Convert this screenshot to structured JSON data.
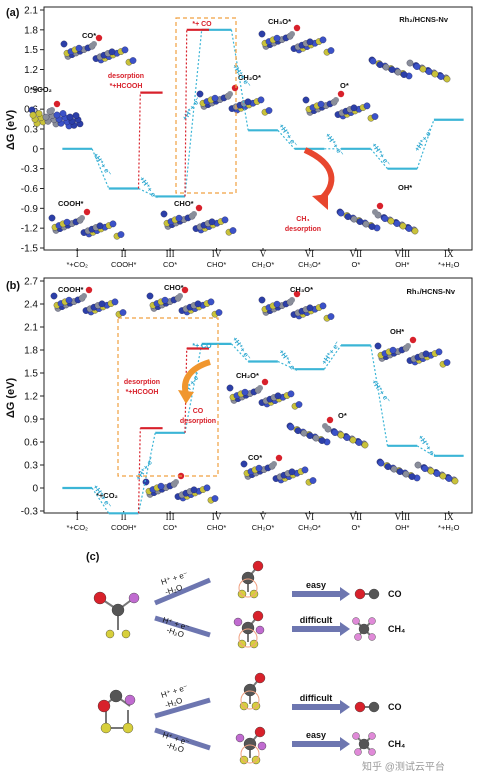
{
  "panels": {
    "a": {
      "label": "(a)",
      "title": "Rh₂/HCNS-Nv"
    },
    "b": {
      "label": "(b)",
      "title": "Rh₁/HCNS-Nv"
    },
    "c": {
      "label": "(c)"
    }
  },
  "chart_data": [
    {
      "type": "line",
      "title": "Rh₂/HCNS-Nv",
      "ylabel": "ΔG (eV)",
      "xlabel": "",
      "ylim": [
        -1.5,
        2.1
      ],
      "yticks": [
        -1.5,
        -1.2,
        -0.9,
        -0.6,
        -0.3,
        0,
        0.3,
        0.6,
        0.9,
        1.2,
        1.5,
        1.8,
        2.1
      ],
      "ytick_labels": [
        "-1.5",
        "-1.2",
        "-0.9",
        "-0.6",
        "-0.3",
        "0",
        "0.3",
        "0.6",
        "0.9",
        "1.2",
        "1.5",
        "1.8",
        "2.1"
      ],
      "roman": [
        "I",
        "II",
        "III",
        "IV",
        "V",
        "VI",
        "VII",
        "VIII",
        "IX"
      ],
      "categories": [
        "*+CO₂",
        "COOH*",
        "CO*",
        "CHO*",
        "CH₂O*",
        "CH₃O*",
        "O*",
        "OH*",
        "*+H₂O"
      ],
      "main_path": {
        "name": "main",
        "values": [
          0,
          -0.6,
          -0.72,
          1.8,
          0.28,
          0,
          0,
          -0.3,
          0.44
        ]
      },
      "branches": [
        {
          "from_index": 1,
          "to": "desorption",
          "value": 0.85,
          "label": "*+HCOOH"
        },
        {
          "from_index": 2,
          "to": "desorption",
          "value": 1.8,
          "label": "*+ CO"
        }
      ],
      "annotations": {
        "desorption_label": "desorption",
        "hcooh_label": "*+HCOOH",
        "co_label": "*+ CO",
        "ch4_label": "CH₄",
        "ch4_desorption": "desorption",
        "step": "+H⁺+ e⁻"
      },
      "species_labels": [
        "CO*",
        "*+CO₂",
        "COOH*",
        "CHO*",
        "CH₂O*",
        "CH₃O*",
        "O*",
        "OH*"
      ]
    },
    {
      "type": "line",
      "title": "Rh₁/HCNS-Nv",
      "ylabel": "ΔG (eV)",
      "xlabel": "",
      "ylim": [
        -0.3,
        2.7
      ],
      "yticks": [
        -0.3,
        0,
        0.3,
        0.6,
        0.9,
        1.2,
        1.5,
        1.8,
        2.1,
        2.4,
        2.7
      ],
      "ytick_labels": [
        "-0.3",
        "0",
        "0.3",
        "0.6",
        "0.9",
        "1.2",
        "1.5",
        "1.8",
        "2.1",
        "2.4",
        "2.7"
      ],
      "roman": [
        "I",
        "II",
        "III",
        "IV",
        "V",
        "VI",
        "VII",
        "VIII",
        "IX"
      ],
      "categories": [
        "*+CO₂",
        "COOH*",
        "CO*",
        "CHO*",
        "CH₂O*",
        "CH₃O*",
        "O*",
        "OH*",
        "*+H₂O"
      ],
      "main_path": {
        "name": "main",
        "values": [
          0,
          -0.33,
          0.72,
          1.88,
          1.65,
          1.55,
          1.86,
          0.55,
          0.42
        ]
      },
      "branches": [
        {
          "from_index": 1,
          "to": "desorption",
          "value": 0.78,
          "label": "*+HCOOH"
        },
        {
          "from_index": 2,
          "to": "desorption",
          "value": 1.82,
          "label": "*+ CO"
        }
      ],
      "annotations": {
        "desorption_label": "desorption",
        "hcooh_label": "*+HCOOH",
        "co_label": "*+ CO",
        "co_desorption": "CO",
        "co_desorption2": "desorption",
        "step": "+H⁺+ e⁻"
      },
      "species_labels": [
        "COOH*",
        "CHO*",
        "CH₃O*",
        "CH₂O*",
        "O*",
        "CO*",
        "OH*",
        "*+CO₂"
      ]
    }
  ],
  "scheme": {
    "arrow_top": "H⁺ + e⁻",
    "arrow_bottom": "-H₂O",
    "rows": [
      {
        "label": "easy",
        "product": "CO"
      },
      {
        "label": "difficult",
        "product": "CH₄"
      },
      {
        "label": "difficult",
        "product": "CO"
      },
      {
        "label": "easy",
        "product": "CH₄"
      }
    ],
    "watermark": "知乎 @测试云平台"
  }
}
